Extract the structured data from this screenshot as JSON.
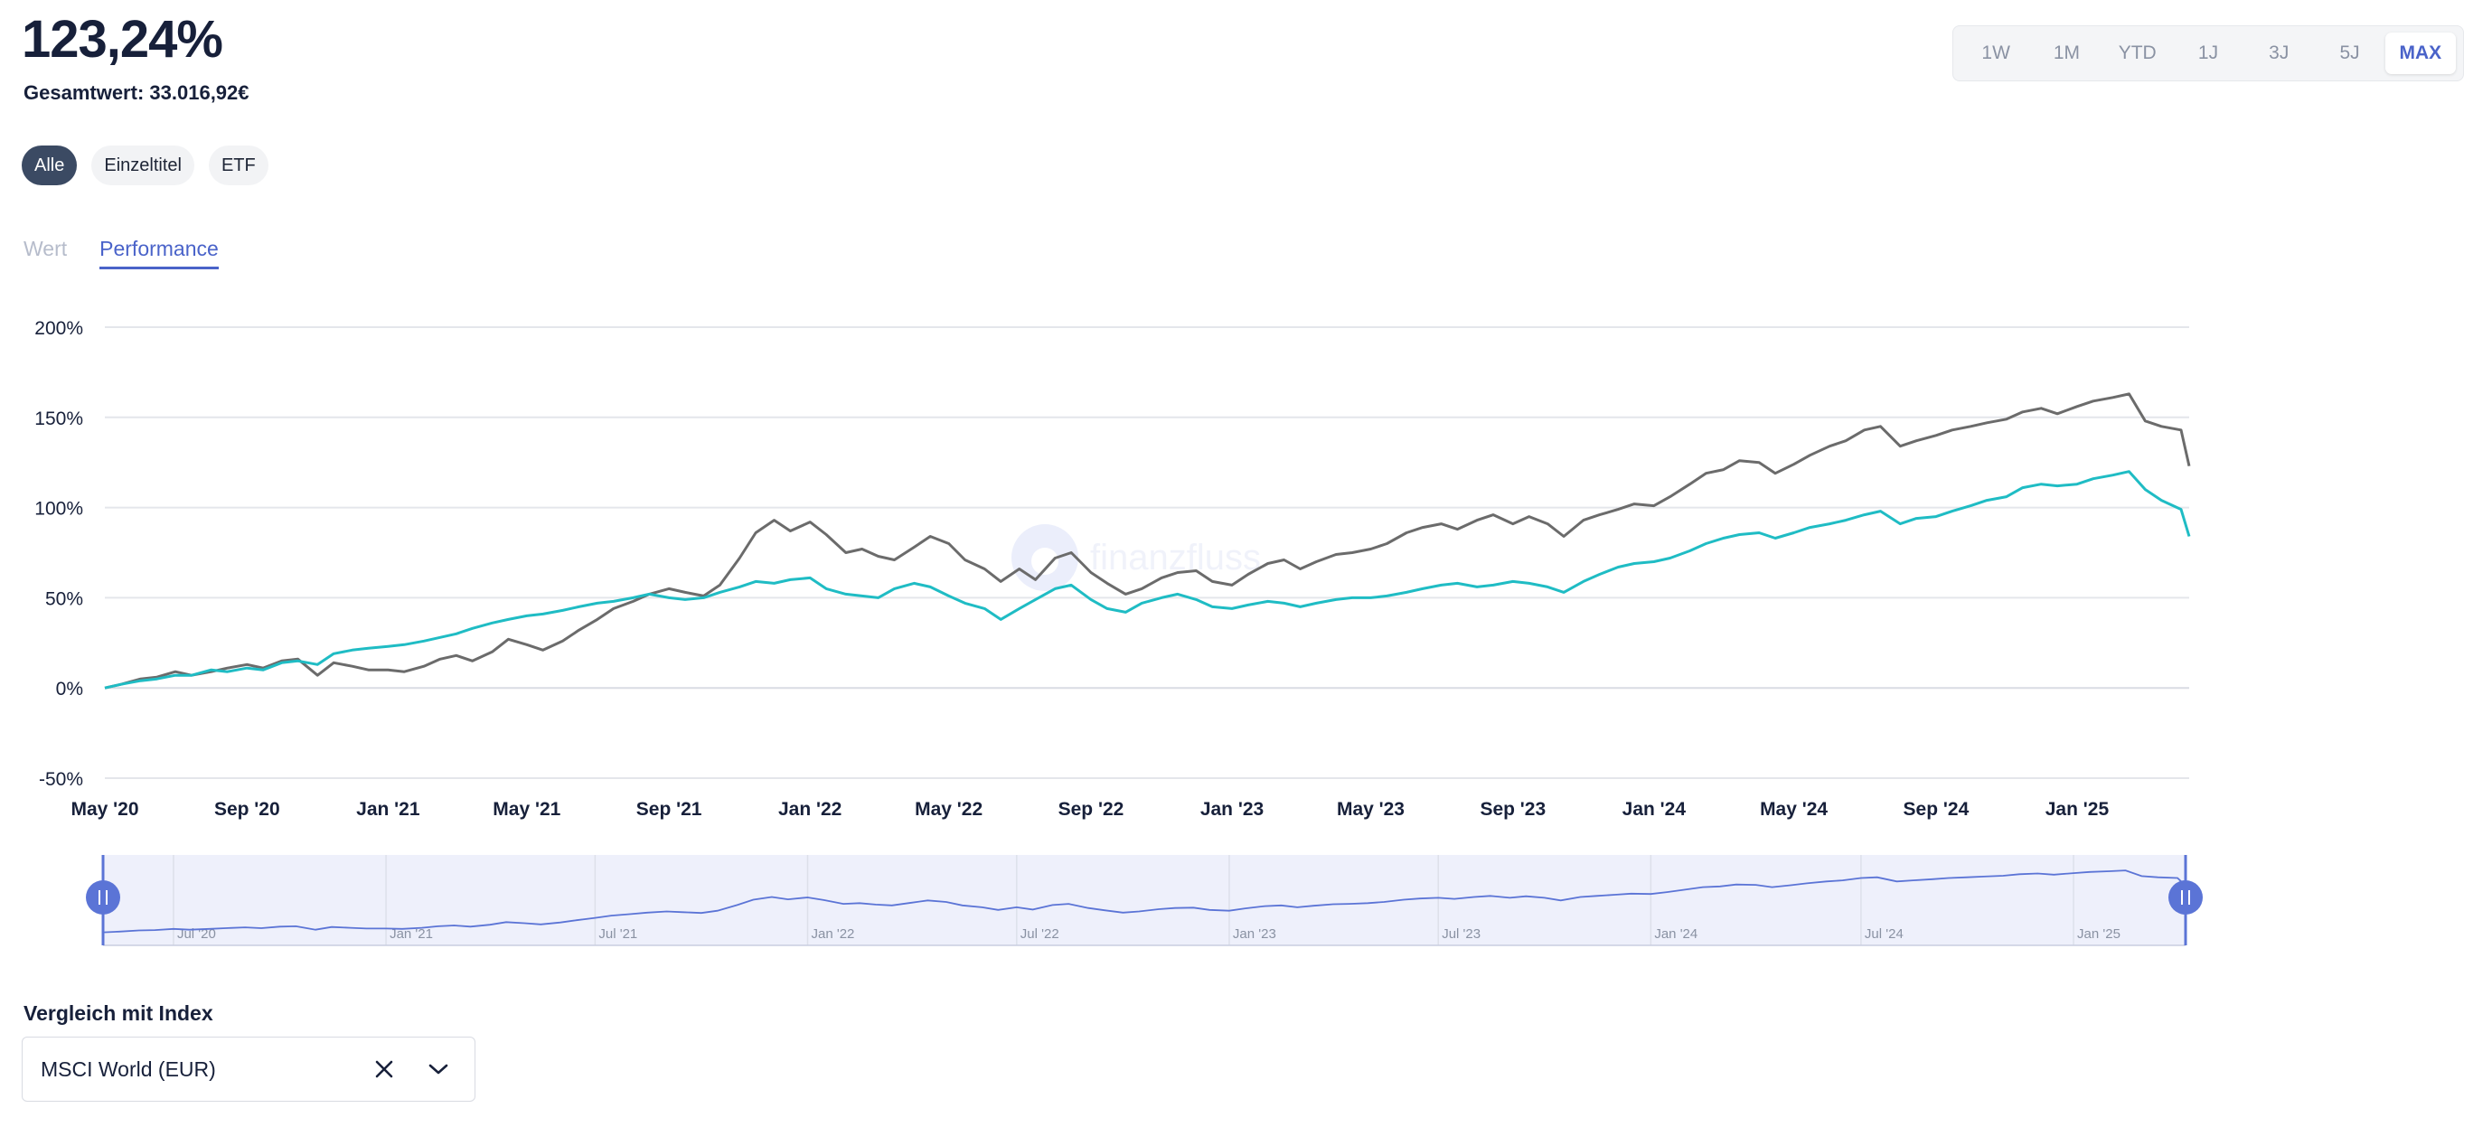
{
  "header": {
    "performance_value": "123,24%",
    "total_label": "Gesamtwert:",
    "total_value": "33.016,92€"
  },
  "ranges": [
    {
      "label": "1W",
      "active": false
    },
    {
      "label": "1M",
      "active": false
    },
    {
      "label": "YTD",
      "active": false
    },
    {
      "label": "1J",
      "active": false
    },
    {
      "label": "3J",
      "active": false
    },
    {
      "label": "5J",
      "active": false
    },
    {
      "label": "MAX",
      "active": true
    }
  ],
  "filters": [
    {
      "label": "Alle",
      "active": true
    },
    {
      "label": "Einzeltitel",
      "active": false
    },
    {
      "label": "ETF",
      "active": false
    }
  ],
  "view_tabs": [
    {
      "label": "Wert",
      "active": false
    },
    {
      "label": "Performance",
      "active": true
    }
  ],
  "watermark": "finanzfluss",
  "comparison": {
    "label": "Vergleich mit Index",
    "selected": "MSCI World (EUR)"
  },
  "colors": {
    "portfolio": "#6b6b6b",
    "index": "#1fbcc4",
    "accent": "#4a63c9",
    "navigator": "#5b74d6"
  },
  "chart_data": {
    "type": "line",
    "y_ticks": [
      "200%",
      "150%",
      "100%",
      "50%",
      "0%",
      "-50%"
    ],
    "ylim": [
      -50,
      200
    ],
    "y_unit": "%",
    "x_tick_labels": [
      "May '20",
      "Sep '20",
      "Jan '21",
      "May '21",
      "Sep '21",
      "Jan '22",
      "May '22",
      "Sep '22",
      "Jan '23",
      "May '23",
      "Sep '23",
      "Jan '24",
      "May '24",
      "Sep '24",
      "Jan '25"
    ],
    "x_range": [
      "2020-05-01",
      "2025-04-08"
    ],
    "grid": true,
    "series": [
      {
        "key": "portfolio",
        "points": [
          [
            "2020-05-01",
            0
          ],
          [
            "2020-05-15",
            2
          ],
          [
            "2020-06-01",
            5
          ],
          [
            "2020-06-15",
            6
          ],
          [
            "2020-07-01",
            9
          ],
          [
            "2020-07-15",
            7
          ],
          [
            "2020-08-01",
            9
          ],
          [
            "2020-08-15",
            11
          ],
          [
            "2020-09-01",
            13
          ],
          [
            "2020-09-15",
            11
          ],
          [
            "2020-10-01",
            15
          ],
          [
            "2020-10-15",
            16
          ],
          [
            "2020-11-01",
            7
          ],
          [
            "2020-11-15",
            14
          ],
          [
            "2020-12-01",
            12
          ],
          [
            "2020-12-15",
            10
          ],
          [
            "2021-01-01",
            10
          ],
          [
            "2021-01-15",
            9
          ],
          [
            "2021-02-01",
            12
          ],
          [
            "2021-02-15",
            16
          ],
          [
            "2021-03-01",
            18
          ],
          [
            "2021-03-15",
            15
          ],
          [
            "2021-04-01",
            20
          ],
          [
            "2021-04-15",
            27
          ],
          [
            "2021-05-01",
            24
          ],
          [
            "2021-05-15",
            21
          ],
          [
            "2021-06-01",
            26
          ],
          [
            "2021-06-15",
            32
          ],
          [
            "2021-07-01",
            38
          ],
          [
            "2021-07-15",
            44
          ],
          [
            "2021-08-01",
            48
          ],
          [
            "2021-08-15",
            52
          ],
          [
            "2021-09-01",
            55
          ],
          [
            "2021-09-15",
            53
          ],
          [
            "2021-10-01",
            51
          ],
          [
            "2021-10-15",
            57
          ],
          [
            "2021-11-01",
            72
          ],
          [
            "2021-11-15",
            86
          ],
          [
            "2021-12-01",
            93
          ],
          [
            "2021-12-15",
            87
          ],
          [
            "2022-01-01",
            92
          ],
          [
            "2022-01-15",
            85
          ],
          [
            "2022-02-01",
            75
          ],
          [
            "2022-02-15",
            77
          ],
          [
            "2022-03-01",
            73
          ],
          [
            "2022-03-15",
            71
          ],
          [
            "2022-04-01",
            78
          ],
          [
            "2022-04-15",
            84
          ],
          [
            "2022-05-01",
            80
          ],
          [
            "2022-05-15",
            71
          ],
          [
            "2022-06-01",
            66
          ],
          [
            "2022-06-15",
            59
          ],
          [
            "2022-07-01",
            66
          ],
          [
            "2022-07-15",
            60
          ],
          [
            "2022-08-01",
            72
          ],
          [
            "2022-08-15",
            75
          ],
          [
            "2022-09-01",
            64
          ],
          [
            "2022-09-15",
            58
          ],
          [
            "2022-10-01",
            52
          ],
          [
            "2022-10-15",
            55
          ],
          [
            "2022-11-01",
            61
          ],
          [
            "2022-11-15",
            64
          ],
          [
            "2022-12-01",
            65
          ],
          [
            "2022-12-15",
            59
          ],
          [
            "2023-01-01",
            57
          ],
          [
            "2023-01-15",
            63
          ],
          [
            "2023-02-01",
            69
          ],
          [
            "2023-02-15",
            71
          ],
          [
            "2023-03-01",
            66
          ],
          [
            "2023-03-15",
            70
          ],
          [
            "2023-04-01",
            74
          ],
          [
            "2023-04-15",
            75
          ],
          [
            "2023-05-01",
            77
          ],
          [
            "2023-05-15",
            80
          ],
          [
            "2023-06-01",
            86
          ],
          [
            "2023-06-15",
            89
          ],
          [
            "2023-07-01",
            91
          ],
          [
            "2023-07-15",
            88
          ],
          [
            "2023-08-01",
            93
          ],
          [
            "2023-08-15",
            96
          ],
          [
            "2023-09-01",
            91
          ],
          [
            "2023-09-15",
            95
          ],
          [
            "2023-10-01",
            91
          ],
          [
            "2023-10-15",
            84
          ],
          [
            "2023-11-01",
            93
          ],
          [
            "2023-11-15",
            96
          ],
          [
            "2023-12-01",
            99
          ],
          [
            "2023-12-15",
            102
          ],
          [
            "2024-01-01",
            101
          ],
          [
            "2024-01-15",
            106
          ],
          [
            "2024-02-01",
            113
          ],
          [
            "2024-02-15",
            119
          ],
          [
            "2024-03-01",
            121
          ],
          [
            "2024-03-15",
            126
          ],
          [
            "2024-04-01",
            125
          ],
          [
            "2024-04-15",
            119
          ],
          [
            "2024-05-01",
            124
          ],
          [
            "2024-05-15",
            129
          ],
          [
            "2024-06-01",
            134
          ],
          [
            "2024-06-15",
            137
          ],
          [
            "2024-07-01",
            143
          ],
          [
            "2024-07-15",
            145
          ],
          [
            "2024-08-01",
            134
          ],
          [
            "2024-08-15",
            137
          ],
          [
            "2024-09-01",
            140
          ],
          [
            "2024-09-15",
            143
          ],
          [
            "2024-10-01",
            145
          ],
          [
            "2024-10-15",
            147
          ],
          [
            "2024-11-01",
            149
          ],
          [
            "2024-11-15",
            153
          ],
          [
            "2024-12-01",
            155
          ],
          [
            "2024-12-15",
            152
          ],
          [
            "2025-01-01",
            156
          ],
          [
            "2025-01-15",
            159
          ],
          [
            "2025-02-01",
            161
          ],
          [
            "2025-02-15",
            163
          ],
          [
            "2025-03-01",
            148
          ],
          [
            "2025-03-15",
            145
          ],
          [
            "2025-04-01",
            143
          ],
          [
            "2025-04-08",
            123
          ]
        ]
      },
      {
        "key": "index",
        "points": [
          [
            "2020-05-01",
            0
          ],
          [
            "2020-05-15",
            2
          ],
          [
            "2020-06-01",
            4
          ],
          [
            "2020-06-15",
            5
          ],
          [
            "2020-07-01",
            7
          ],
          [
            "2020-07-15",
            7
          ],
          [
            "2020-08-01",
            10
          ],
          [
            "2020-08-15",
            9
          ],
          [
            "2020-09-01",
            11
          ],
          [
            "2020-09-15",
            10
          ],
          [
            "2020-10-01",
            14
          ],
          [
            "2020-10-15",
            15
          ],
          [
            "2020-11-01",
            13
          ],
          [
            "2020-11-15",
            19
          ],
          [
            "2020-12-01",
            21
          ],
          [
            "2020-12-15",
            22
          ],
          [
            "2021-01-01",
            23
          ],
          [
            "2021-01-15",
            24
          ],
          [
            "2021-02-01",
            26
          ],
          [
            "2021-02-15",
            28
          ],
          [
            "2021-03-01",
            30
          ],
          [
            "2021-03-15",
            33
          ],
          [
            "2021-04-01",
            36
          ],
          [
            "2021-04-15",
            38
          ],
          [
            "2021-05-01",
            40
          ],
          [
            "2021-05-15",
            41
          ],
          [
            "2021-06-01",
            43
          ],
          [
            "2021-06-15",
            45
          ],
          [
            "2021-07-01",
            47
          ],
          [
            "2021-07-15",
            48
          ],
          [
            "2021-08-01",
            50
          ],
          [
            "2021-08-15",
            52
          ],
          [
            "2021-09-01",
            50
          ],
          [
            "2021-09-15",
            49
          ],
          [
            "2021-10-01",
            50
          ],
          [
            "2021-10-15",
            53
          ],
          [
            "2021-11-01",
            56
          ],
          [
            "2021-11-15",
            59
          ],
          [
            "2021-12-01",
            58
          ],
          [
            "2021-12-15",
            60
          ],
          [
            "2022-01-01",
            61
          ],
          [
            "2022-01-15",
            55
          ],
          [
            "2022-02-01",
            52
          ],
          [
            "2022-02-15",
            51
          ],
          [
            "2022-03-01",
            50
          ],
          [
            "2022-03-15",
            55
          ],
          [
            "2022-04-01",
            58
          ],
          [
            "2022-04-15",
            56
          ],
          [
            "2022-05-01",
            51
          ],
          [
            "2022-05-15",
            47
          ],
          [
            "2022-06-01",
            44
          ],
          [
            "2022-06-15",
            38
          ],
          [
            "2022-07-01",
            44
          ],
          [
            "2022-07-15",
            49
          ],
          [
            "2022-08-01",
            55
          ],
          [
            "2022-08-15",
            57
          ],
          [
            "2022-09-01",
            49
          ],
          [
            "2022-09-15",
            44
          ],
          [
            "2022-10-01",
            42
          ],
          [
            "2022-10-15",
            47
          ],
          [
            "2022-11-01",
            50
          ],
          [
            "2022-11-15",
            52
          ],
          [
            "2022-12-01",
            49
          ],
          [
            "2022-12-15",
            45
          ],
          [
            "2023-01-01",
            44
          ],
          [
            "2023-01-15",
            46
          ],
          [
            "2023-02-01",
            48
          ],
          [
            "2023-02-15",
            47
          ],
          [
            "2023-03-01",
            45
          ],
          [
            "2023-03-15",
            47
          ],
          [
            "2023-04-01",
            49
          ],
          [
            "2023-04-15",
            50
          ],
          [
            "2023-05-01",
            50
          ],
          [
            "2023-05-15",
            51
          ],
          [
            "2023-06-01",
            53
          ],
          [
            "2023-06-15",
            55
          ],
          [
            "2023-07-01",
            57
          ],
          [
            "2023-07-15",
            58
          ],
          [
            "2023-08-01",
            56
          ],
          [
            "2023-08-15",
            57
          ],
          [
            "2023-09-01",
            59
          ],
          [
            "2023-09-15",
            58
          ],
          [
            "2023-10-01",
            56
          ],
          [
            "2023-10-15",
            53
          ],
          [
            "2023-11-01",
            59
          ],
          [
            "2023-11-15",
            63
          ],
          [
            "2023-12-01",
            67
          ],
          [
            "2023-12-15",
            69
          ],
          [
            "2024-01-01",
            70
          ],
          [
            "2024-01-15",
            72
          ],
          [
            "2024-02-01",
            76
          ],
          [
            "2024-02-15",
            80
          ],
          [
            "2024-03-01",
            83
          ],
          [
            "2024-03-15",
            85
          ],
          [
            "2024-04-01",
            86
          ],
          [
            "2024-04-15",
            83
          ],
          [
            "2024-05-01",
            86
          ],
          [
            "2024-05-15",
            89
          ],
          [
            "2024-06-01",
            91
          ],
          [
            "2024-06-15",
            93
          ],
          [
            "2024-07-01",
            96
          ],
          [
            "2024-07-15",
            98
          ],
          [
            "2024-08-01",
            91
          ],
          [
            "2024-08-15",
            94
          ],
          [
            "2024-09-01",
            95
          ],
          [
            "2024-09-15",
            98
          ],
          [
            "2024-10-01",
            101
          ],
          [
            "2024-10-15",
            104
          ],
          [
            "2024-11-01",
            106
          ],
          [
            "2024-11-15",
            111
          ],
          [
            "2024-12-01",
            113
          ],
          [
            "2024-12-15",
            112
          ],
          [
            "2025-01-01",
            113
          ],
          [
            "2025-01-15",
            116
          ],
          [
            "2025-02-01",
            118
          ],
          [
            "2025-02-15",
            120
          ],
          [
            "2025-03-01",
            110
          ],
          [
            "2025-03-15",
            104
          ],
          [
            "2025-04-01",
            99
          ],
          [
            "2025-04-08",
            84
          ]
        ]
      }
    ]
  },
  "navigator": {
    "tick_labels": [
      "Jul '20",
      "Jan '21",
      "Jul '21",
      "Jan '22",
      "Jul '22",
      "Jan '23",
      "Jul '23",
      "Jan '24",
      "Jul '24",
      "Jan '25"
    ],
    "selection": [
      "2020-05-01",
      "2025-04-08"
    ]
  }
}
